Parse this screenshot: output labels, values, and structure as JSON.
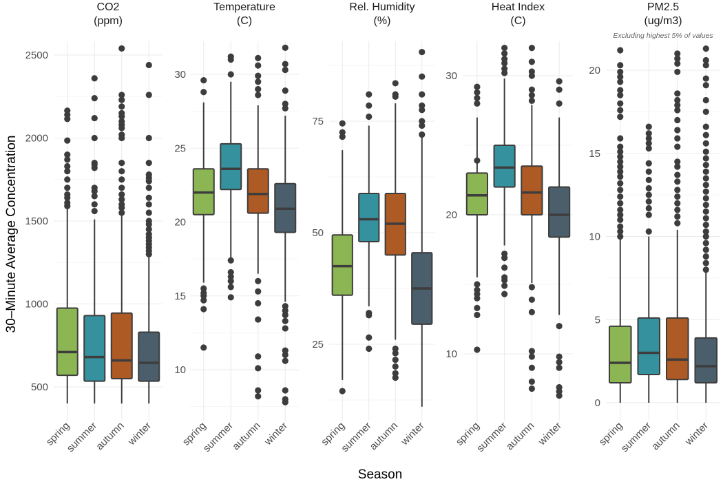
{
  "chart_data": {
    "type": "box",
    "layout": "faceted-5-panels",
    "ylabel": "30–Minute Average Concentration",
    "xlabel": "Season",
    "categories": [
      "spring",
      "summer",
      "autumn",
      "winter"
    ],
    "colors": {
      "spring": "#8cb553",
      "summer": "#35919e",
      "autumn": "#ad5a25",
      "winter": "#4a5f6b"
    },
    "grid": true,
    "panels": [
      {
        "title": "CO2",
        "unit": "(ppm)",
        "subtitle": "",
        "yticks": [
          500,
          1000,
          1500,
          2000,
          2500
        ],
        "ylim": [
          350,
          2620
        ],
        "series": [
          {
            "season": "spring",
            "min": 400,
            "q1": 570,
            "median": 710,
            "q3": 975,
            "max": 1580,
            "outliers": [
              1590,
              1610,
              1640,
              1660,
              1700,
              1750,
              1800,
              1830,
              1870,
              1900,
              1985,
              2115,
              2140,
              2165
            ]
          },
          {
            "season": "summer",
            "min": 400,
            "q1": 535,
            "median": 680,
            "q3": 930,
            "max": 1510,
            "outliers": [
              1560,
              1600,
              1650,
              1680,
              1700,
              1820,
              1840,
              1850,
              2000,
              2120,
              2240,
              2360
            ]
          },
          {
            "season": "autumn",
            "min": 400,
            "q1": 550,
            "median": 660,
            "q3": 945,
            "max": 1540,
            "outliers": [
              1550,
              1580,
              1600,
              1630,
              1660,
              1700,
              1750,
              1800,
              1850,
              2000,
              2020,
              2060,
              2080,
              2100,
              2130,
              2150,
              2190,
              2230,
              2260,
              2540
            ]
          },
          {
            "season": "winter",
            "min": 400,
            "q1": 535,
            "median": 645,
            "q3": 830,
            "max": 1290,
            "outliers": [
              1300,
              1320,
              1340,
              1360,
              1380,
              1400,
              1420,
              1450,
              1480,
              1500,
              1550,
              1600,
              1640,
              1700,
              1740,
              1760,
              1780,
              1850,
              2000,
              2260,
              2440
            ]
          }
        ]
      },
      {
        "title": "Temperature",
        "unit": "(C)",
        "subtitle": "",
        "yticks": [
          10,
          15,
          20,
          25,
          30
        ],
        "ylim": [
          7.3,
          32.8
        ],
        "series": [
          {
            "season": "spring",
            "min": 15.9,
            "q1": 20.5,
            "median": 22.0,
            "q3": 23.6,
            "max": 28.1,
            "outliers": [
              11.5,
              14.1,
              14.7,
              15.0,
              15.2,
              15.5,
              28.8,
              29.6
            ]
          },
          {
            "season": "summer",
            "min": 17.2,
            "q1": 22.2,
            "median": 23.6,
            "q3": 25.3,
            "max": 29.5,
            "outliers": [
              14.9,
              15.6,
              16.0,
              16.3,
              16.6,
              17.4,
              30.0,
              31.0,
              31.2
            ]
          },
          {
            "season": "autumn",
            "min": 16.5,
            "q1": 20.6,
            "median": 21.9,
            "q3": 23.6,
            "max": 27.9,
            "outliers": [
              8.2,
              8.6,
              10.1,
              10.9,
              13.4,
              14.5,
              15.3,
              16.0,
              28.6,
              29.0,
              29.5,
              29.9,
              30.6,
              31.1
            ]
          },
          {
            "season": "winter",
            "min": 14.6,
            "q1": 19.3,
            "median": 20.9,
            "q3": 22.6,
            "max": 27.2,
            "outliers": [
              7.8,
              8.0,
              8.6,
              10.6,
              11.0,
              11.3,
              12.8,
              13.3,
              13.7,
              14.0,
              14.3,
              27.7,
              28.0,
              28.9,
              30.3,
              30.7,
              31.8
            ]
          }
        ]
      },
      {
        "title": "Rel. Humidity",
        "unit": "(%)",
        "subtitle": "",
        "yticks": [
          25,
          50,
          75
        ],
        "ylim": [
          10,
          93
        ],
        "series": [
          {
            "season": "spring",
            "min": 17.0,
            "q1": 36.0,
            "median": 42.5,
            "q3": 49.5,
            "max": 68.5,
            "outliers": [
              14.5,
              71.5,
              72.5,
              74.5
            ]
          },
          {
            "season": "summer",
            "min": 33.5,
            "q1": 48.0,
            "median": 53.0,
            "q3": 58.8,
            "max": 74.0,
            "outliers": [
              24.0,
              26.5,
              31.5,
              32.0,
              76.0,
              78.5,
              81.0
            ]
          },
          {
            "season": "autumn",
            "min": 26.0,
            "q1": 45.0,
            "median": 52.0,
            "q3": 58.8,
            "max": 79.0,
            "outliers": [
              17.5,
              18.5,
              20.0,
              21.5,
              23.0,
              24.0,
              80.5,
              81.0,
              83.5
            ]
          },
          {
            "season": "winter",
            "min": 11.0,
            "q1": 29.5,
            "median": 37.5,
            "q3": 45.5,
            "max": 71.5,
            "outliers": [
              72.0,
              74.0,
              75.0,
              77.5,
              78.5,
              81.0,
              85.0,
              90.5
            ]
          }
        ]
      },
      {
        "title": "Heat Index",
        "unit": "(C)",
        "subtitle": "",
        "yticks": [
          10,
          20,
          30
        ],
        "ylim": [
          6.5,
          33.0
        ],
        "series": [
          {
            "season": "spring",
            "min": 15.5,
            "q1": 20.0,
            "median": 21.4,
            "q3": 23.0,
            "max": 27.0,
            "outliers": [
              10.3,
              12.8,
              13.3,
              14.0,
              14.3,
              14.6,
              15.0,
              23.9,
              28.0,
              28.4,
              28.8,
              29.2
            ]
          },
          {
            "season": "summer",
            "min": 17.8,
            "q1": 22.0,
            "median": 23.4,
            "q3": 25.0,
            "max": 29.8,
            "outliers": [
              14.3,
              14.9,
              15.3,
              15.5,
              16.2,
              16.9,
              17.2,
              30.2,
              30.5,
              30.9,
              31.2,
              31.6,
              32.0
            ]
          },
          {
            "season": "autumn",
            "min": 15.1,
            "q1": 20.0,
            "median": 21.6,
            "q3": 23.5,
            "max": 27.9,
            "outliers": [
              7.5,
              8.0,
              9.0,
              9.8,
              10.2,
              13.0,
              13.9,
              14.8,
              28.2,
              28.6,
              29.0,
              30.0,
              30.3,
              31.0,
              32.0
            ]
          },
          {
            "season": "winter",
            "min": 12.8,
            "q1": 18.4,
            "median": 20.0,
            "q3": 22.0,
            "max": 27.0,
            "outliers": [
              7.0,
              7.3,
              7.6,
              9.0,
              9.4,
              9.8,
              12.0,
              28.0,
              29.0,
              29.6
            ]
          }
        ]
      },
      {
        "title": "PM2.5",
        "unit": "(ug/m3)",
        "subtitle": "Excluding highest 5% of values",
        "yticks": [
          0,
          5,
          10,
          15,
          20
        ],
        "ylim": [
          -0.6,
          22.0
        ],
        "series": [
          {
            "season": "spring",
            "min": 0.0,
            "q1": 1.2,
            "median": 2.4,
            "q3": 4.6,
            "max": 9.9,
            "outliers": [
              10.0,
              10.3,
              10.6,
              11.0,
              11.3,
              11.6,
              12.0,
              12.4,
              12.8,
              13.2,
              13.6,
              13.9,
              14.2,
              14.5,
              14.8,
              15.1,
              15.4,
              15.9,
              17.2,
              17.6,
              18.0,
              18.5,
              18.8,
              19.3,
              19.6,
              19.9,
              20.3,
              21.2
            ]
          },
          {
            "season": "summer",
            "min": 0.0,
            "q1": 1.7,
            "median": 3.0,
            "q3": 5.1,
            "max": 10.0,
            "outliers": [
              10.3,
              11.3,
              11.7,
              12.1,
              12.5,
              12.9,
              13.4,
              13.9,
              14.4,
              15.3,
              15.6,
              15.9,
              16.2,
              16.6
            ]
          },
          {
            "season": "autumn",
            "min": 0.0,
            "q1": 1.4,
            "median": 2.6,
            "q3": 5.1,
            "max": 10.4,
            "outliers": [
              10.8,
              11.2,
              11.6,
              12.0,
              12.4,
              12.8,
              13.3,
              13.7,
              14.2,
              14.5,
              15.4,
              15.9,
              16.4,
              17.0,
              17.6,
              17.9,
              18.2,
              18.6,
              19.9,
              20.4,
              20.7,
              21.0
            ]
          },
          {
            "season": "winter",
            "min": 0.0,
            "q1": 1.2,
            "median": 2.2,
            "q3": 3.9,
            "max": 7.9,
            "outliers": [
              8.0,
              8.4,
              8.8,
              9.2,
              9.6,
              10.0,
              10.3,
              10.7,
              11.1,
              11.5,
              11.9,
              12.3,
              12.7,
              13.1,
              13.5,
              13.9,
              14.3,
              14.7,
              15.1,
              15.6,
              16.1,
              16.6,
              17.5,
              18.2,
              19.1,
              19.5,
              20.3,
              20.6,
              21.3
            ]
          }
        ]
      }
    ]
  }
}
